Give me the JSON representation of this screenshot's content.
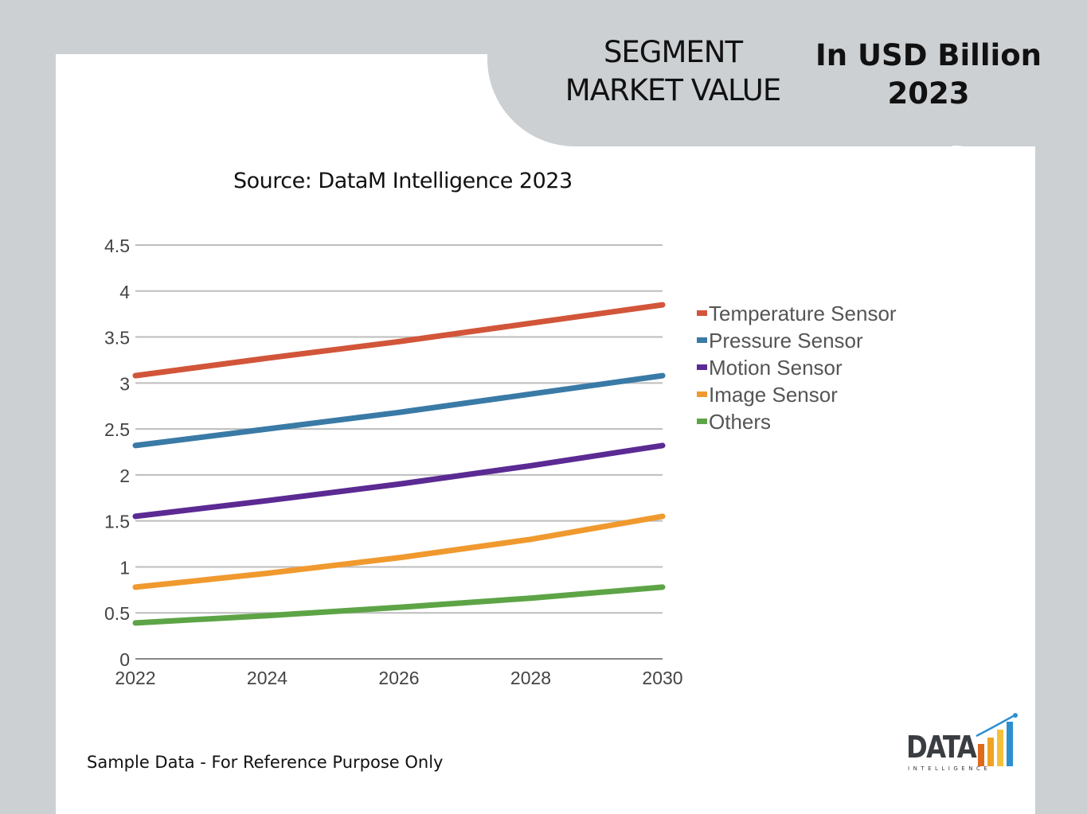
{
  "header": {
    "segment_title": "SEGMENT MARKET VALUE",
    "unit_title": "In USD Billion 2023"
  },
  "source": "Source: DataM Intelligence 2023",
  "note": "Sample Data - For Reference Purpose Only",
  "logo": {
    "word": "DATA",
    "sub": "INTELLIGENCE",
    "colors": [
      "#e06a1b",
      "#f0a323",
      "#f5c13b",
      "#2e8fcf"
    ]
  },
  "chart_data": {
    "type": "line",
    "x": [
      2022,
      2024,
      2026,
      2028,
      2030
    ],
    "xtick_labels": [
      "2022",
      "2024",
      "2026",
      "2028",
      "2030"
    ],
    "ylim": [
      0,
      4.5
    ],
    "yticks": [
      0,
      0.5,
      1,
      1.5,
      2,
      2.5,
      3,
      3.5,
      4,
      4.5
    ],
    "ytick_labels": [
      "0",
      "0.5",
      "1",
      "1.5",
      "2",
      "2.5",
      "3",
      "3.5",
      "4",
      "4.5"
    ],
    "grid": true,
    "legend_position": "right",
    "series": [
      {
        "name": "Temperature Sensor",
        "color": "#d2553a",
        "values": [
          3.08,
          3.27,
          3.45,
          3.65,
          3.85
        ]
      },
      {
        "name": "Pressure Sensor",
        "color": "#3a7aa6",
        "values": [
          2.32,
          2.5,
          2.68,
          2.88,
          3.08
        ]
      },
      {
        "name": "Motion Sensor",
        "color": "#5b2a93",
        "values": [
          1.55,
          1.72,
          1.9,
          2.1,
          2.32
        ]
      },
      {
        "name": "Image Sensor",
        "color": "#f0992e",
        "values": [
          0.78,
          0.93,
          1.1,
          1.3,
          1.55
        ]
      },
      {
        "name": "Others",
        "color": "#5da446",
        "values": [
          0.39,
          0.47,
          0.56,
          0.66,
          0.78
        ]
      }
    ]
  }
}
